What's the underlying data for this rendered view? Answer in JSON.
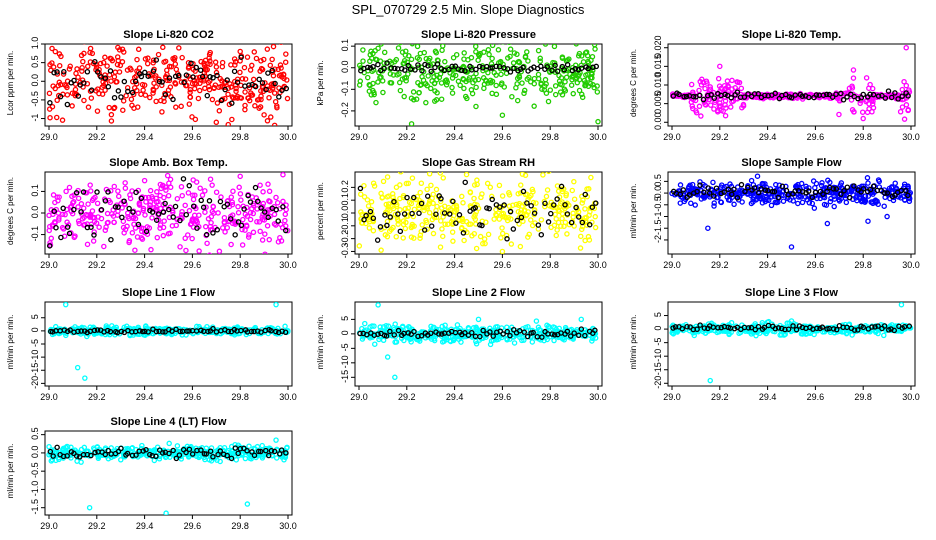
{
  "title": "SPL_070729  2.5 Min. Slope Diagnostics",
  "colors": {
    "black": "#000000",
    "red": "#ff0000",
    "green": "#22cc00",
    "magenta": "#ff00ff",
    "yellow": "#ffff00",
    "blue": "#0000ff",
    "cyan": "#00ffff"
  },
  "chart_data": [
    {
      "type": "scatter",
      "title": "Slope Li-820 CO2",
      "ylabel": "Lcor ppm per min.",
      "color": "red",
      "xlim": [
        29.0,
        30.0
      ],
      "ylim": [
        -1.2,
        1.0
      ],
      "xticks": [
        "29.0",
        "29.2",
        "29.4",
        "29.6",
        "29.8",
        "30.0"
      ],
      "yticks": [
        {
          "v": -1.0,
          "t": "-1"
        },
        {
          "v": -0.5,
          "t": "-0.5"
        },
        {
          "v": 0.0,
          "t": "0.0"
        },
        {
          "v": 0.5,
          "t": "0.5"
        },
        {
          "v": 1.0,
          "t": "1.0"
        }
      ],
      "series_main": {
        "spread": 0.5,
        "center": 0.05,
        "outliers": [
          [
            29.7,
            -1.1
          ],
          [
            29.8,
            0.8
          ],
          [
            29.9,
            -0.9
          ]
        ]
      },
      "series_black": {
        "spread": 0.3,
        "center": 0.0
      }
    },
    {
      "type": "scatter",
      "title": "Slope Li-820 Pressure",
      "ylabel": "kPa per min.",
      "color": "green",
      "xlim": [
        29.0,
        30.0
      ],
      "ylim": [
        -0.27,
        0.11
      ],
      "xticks": [
        "29.0",
        "29.2",
        "29.4",
        "29.6",
        "29.8",
        "30.0"
      ],
      "yticks": [
        {
          "v": -0.2,
          "t": "-0.2"
        },
        {
          "v": -0.1,
          "t": "-0.1"
        },
        {
          "v": 0.0,
          "t": "0.0"
        },
        {
          "v": 0.1,
          "t": "0.1"
        }
      ],
      "series_main": {
        "spread": 0.07,
        "center": -0.02,
        "outliers": [
          [
            29.08,
            0.09
          ],
          [
            29.22,
            -0.26
          ],
          [
            29.6,
            -0.22
          ],
          [
            30.0,
            -0.25
          ]
        ]
      },
      "series_black": {
        "spread": 0.01,
        "center": 0.0
      }
    },
    {
      "type": "scatter",
      "title": "Slope Li-820 Temp.",
      "ylabel": "degrees C per min.",
      "color": "magenta",
      "xlim": [
        29.0,
        30.0
      ],
      "ylim": [
        -0.001,
        0.021
      ],
      "xticks": [
        "29.0",
        "29.2",
        "29.4",
        "29.6",
        "29.8",
        "30.0"
      ],
      "yticks": [
        {
          "v": 0.0,
          "t": "0.00"
        },
        {
          "v": 0.005,
          "t": "0.005"
        },
        {
          "v": 0.01,
          "t": "0.010"
        },
        {
          "v": 0.015,
          "t": "0.015"
        },
        {
          "v": 0.02,
          "t": "0.020"
        }
      ],
      "series_main": {
        "spread": 0.002,
        "center": 0.007,
        "outliers": [
          [
            29.2,
            0.015
          ],
          [
            29.8,
            0.001
          ],
          [
            29.98,
            0.02
          ]
        ]
      },
      "series_black": {
        "spread": 0.0005,
        "center": 0.007
      }
    },
    {
      "type": "scatter",
      "title": "Slope Amb. Box Temp.",
      "ylabel": "degrees C per min.",
      "color": "magenta",
      "xlim": [
        29.0,
        30.0
      ],
      "ylim": [
        -0.19,
        0.19
      ],
      "xticks": [
        "29.0",
        "29.2",
        "29.4",
        "29.6",
        "29.8",
        "30.0"
      ],
      "yticks": [
        {
          "v": -0.1,
          "t": "-0.1"
        },
        {
          "v": 0.0,
          "t": "0.0"
        },
        {
          "v": 0.1,
          "t": "0.1"
        }
      ],
      "series_main": {
        "spread": 0.08,
        "center": 0.0,
        "outliers": [
          [
            29.4,
            0.15
          ],
          [
            29.8,
            0.17
          ]
        ]
      },
      "series_black": {
        "spread": 0.06,
        "center": 0.0
      }
    },
    {
      "type": "scatter",
      "title": "Slope Gas Stream RH",
      "ylabel": "percent per min.",
      "color": "yellow",
      "xlim": [
        29.0,
        30.0
      ],
      "ylim": [
        -0.32,
        0.32
      ],
      "xticks": [
        "29.0",
        "29.2",
        "29.4",
        "29.6",
        "29.8",
        "30.0"
      ],
      "yticks": [
        {
          "v": -0.3,
          "t": "-0.3"
        },
        {
          "v": -0.2,
          "t": "-0.2"
        },
        {
          "v": -0.1,
          "t": "-0.1"
        },
        {
          "v": 0.0,
          "t": "0.0"
        },
        {
          "v": 0.1,
          "t": "0.1"
        },
        {
          "v": 0.2,
          "t": "0.2"
        }
      ],
      "series_main": {
        "spread": 0.14,
        "center": 0.02,
        "outliers": [
          [
            29.45,
            0.3
          ],
          [
            29.6,
            -0.3
          ]
        ]
      },
      "series_black": {
        "spread": 0.1,
        "center": 0.0
      }
    },
    {
      "type": "scatter",
      "title": "Slope Sample Flow",
      "ylabel": "ml/min per min.",
      "color": "blue",
      "xlim": [
        29.0,
        30.0
      ],
      "ylim": [
        -2.6,
        0.9
      ],
      "xticks": [
        "29.0",
        "29.2",
        "29.4",
        "29.6",
        "29.8",
        "30.0"
      ],
      "yticks": [
        {
          "v": -2.0,
          "t": "-2"
        },
        {
          "v": -1.5,
          "t": "-1.5"
        },
        {
          "v": -1.0,
          "t": "-1"
        },
        {
          "v": -0.5,
          "t": "-0.5"
        },
        {
          "v": 0.0,
          "t": "0.0"
        },
        {
          "v": 0.5,
          "t": "0.5"
        }
      ],
      "series_main": {
        "spread": 0.25,
        "center": 0.0,
        "outliers": [
          [
            29.15,
            -1.5
          ],
          [
            29.5,
            -2.3
          ],
          [
            29.65,
            -1.3
          ],
          [
            29.82,
            -1.2
          ],
          [
            29.9,
            -1.0
          ]
        ]
      },
      "series_black": {
        "spread": 0.15,
        "center": 0.05
      }
    },
    {
      "type": "scatter",
      "title": "Slope Line 1 Flow",
      "ylabel": "ml/min per min.",
      "color": "cyan",
      "xlim": [
        29.0,
        30.0
      ],
      "ylim": [
        -21,
        11
      ],
      "xticks": [
        "29.0",
        "29.2",
        "29.4",
        "29.6",
        "29.8",
        "30.0"
      ],
      "yticks": [
        {
          "v": -20,
          "t": "-20"
        },
        {
          "v": -15,
          "t": "-15"
        },
        {
          "v": -10,
          "t": "-10"
        },
        {
          "v": -5,
          "t": "-5"
        },
        {
          "v": 0,
          "t": "0"
        },
        {
          "v": 5,
          "t": "5"
        }
      ],
      "series_main": {
        "spread": 0.8,
        "center": 0.0,
        "outliers": [
          [
            29.07,
            10
          ],
          [
            29.12,
            -14
          ],
          [
            29.15,
            -18
          ],
          [
            29.95,
            10
          ]
        ]
      },
      "series_black": {
        "spread": 0.3,
        "center": 0.0
      }
    },
    {
      "type": "scatter",
      "title": "Slope Line 2 Flow",
      "ylabel": "ml/min per min.",
      "color": "cyan",
      "xlim": [
        29.0,
        30.0
      ],
      "ylim": [
        -18,
        11
      ],
      "xticks": [
        "29.0",
        "29.2",
        "29.4",
        "29.6",
        "29.8",
        "30.0"
      ],
      "yticks": [
        {
          "v": -15,
          "t": "-15"
        },
        {
          "v": -10,
          "t": "-10"
        },
        {
          "v": -5,
          "t": "-5"
        },
        {
          "v": 0,
          "t": "0"
        },
        {
          "v": 5,
          "t": "5"
        }
      ],
      "series_main": {
        "spread": 1.5,
        "center": 0.0,
        "outliers": [
          [
            29.08,
            10
          ],
          [
            29.12,
            -8
          ],
          [
            29.15,
            -15
          ],
          [
            29.5,
            5
          ],
          [
            29.93,
            5
          ]
        ]
      },
      "series_black": {
        "spread": 0.8,
        "center": 0.0
      }
    },
    {
      "type": "scatter",
      "title": "Slope Line 3 Flow",
      "ylabel": "ml/min per min.",
      "color": "cyan",
      "xlim": [
        29.0,
        30.0
      ],
      "ylim": [
        -21,
        10
      ],
      "xticks": [
        "29.0",
        "29.2",
        "29.4",
        "29.6",
        "29.8",
        "30.0"
      ],
      "yticks": [
        {
          "v": -20,
          "t": "-20"
        },
        {
          "v": -15,
          "t": "-15"
        },
        {
          "v": -10,
          "t": "-10"
        },
        {
          "v": -5,
          "t": "-5"
        },
        {
          "v": 0,
          "t": "0"
        },
        {
          "v": 5,
          "t": "5"
        }
      ],
      "series_main": {
        "spread": 1.0,
        "center": 0.0,
        "outliers": [
          [
            29.16,
            -19
          ],
          [
            29.5,
            3
          ],
          [
            29.96,
            9
          ]
        ]
      },
      "series_black": {
        "spread": 0.5,
        "center": 0.5
      }
    },
    {
      "type": "scatter",
      "title": "Slope Line 4 (LT) Flow",
      "ylabel": "ml/min per min.",
      "color": "cyan",
      "xlim": [
        29.0,
        30.0
      ],
      "ylim": [
        -1.7,
        0.6
      ],
      "xticks": [
        "29.0",
        "29.2",
        "29.4",
        "29.6",
        "29.8",
        "30.0"
      ],
      "yticks": [
        {
          "v": -1.5,
          "t": "-1.5"
        },
        {
          "v": -1.0,
          "t": "-1.0"
        },
        {
          "v": -0.5,
          "t": "-0.5"
        },
        {
          "v": 0.0,
          "t": "0.0"
        },
        {
          "v": 0.5,
          "t": "0.5"
        }
      ],
      "series_main": {
        "spread": 0.1,
        "center": 0.0,
        "outliers": [
          [
            29.17,
            -1.5
          ],
          [
            29.49,
            -1.65
          ],
          [
            29.83,
            -1.4
          ],
          [
            29.95,
            0.35
          ]
        ]
      },
      "series_black": {
        "spread": 0.07,
        "center": 0.0
      }
    }
  ]
}
